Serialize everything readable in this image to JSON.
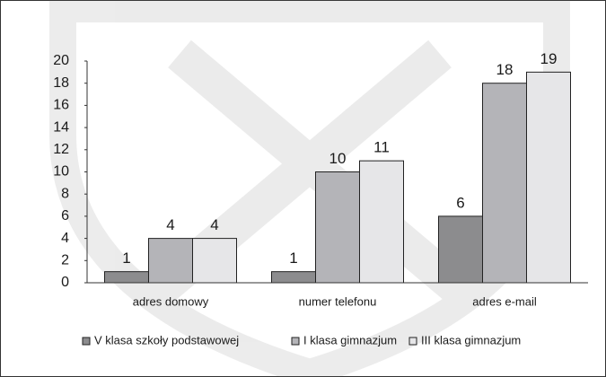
{
  "chart_data": {
    "type": "bar",
    "categories": [
      "adres domowy",
      "numer telefonu",
      "adres e-mail"
    ],
    "series": [
      {
        "name": "V klasa szkoły podstawowej",
        "color": "#8c8c8e",
        "values": [
          1,
          1,
          6
        ]
      },
      {
        "name": "I klasa gimnazjum",
        "color": "#b4b4b8",
        "values": [
          4,
          10,
          18
        ]
      },
      {
        "name": "III klasa gimnazjum",
        "color": "#e6e6e8",
        "values": [
          4,
          11,
          19
        ]
      }
    ],
    "ylim": [
      0,
      20
    ],
    "yticks": [
      0,
      2,
      4,
      6,
      8,
      10,
      12,
      14,
      16,
      18,
      20
    ],
    "legend": "bottom"
  }
}
